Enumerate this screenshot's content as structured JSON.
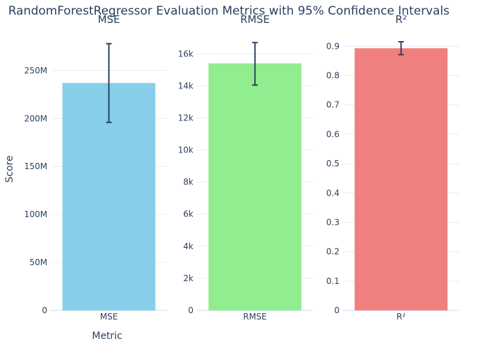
{
  "title": "RandomForestRegressor Evaluation Metrics with 95% Confidence Intervals",
  "xlabel": "Metric",
  "ylabel": "Score",
  "chart_data": [
    {
      "type": "bar",
      "title": "MSE",
      "categories": [
        "MSE"
      ],
      "values": [
        237000000
      ],
      "error_low": [
        196000000
      ],
      "error_high": [
        278000000
      ],
      "ylim": [
        0,
        280000000
      ],
      "ticks": [
        0,
        50000000,
        100000000,
        150000000,
        200000000,
        250000000
      ],
      "tick_labels": [
        "0",
        "50M",
        "100M",
        "150M",
        "200M",
        "250M"
      ],
      "color": "#87CEEB"
    },
    {
      "type": "bar",
      "title": "RMSE",
      "categories": [
        "RMSE"
      ],
      "values": [
        15400
      ],
      "error_low": [
        14050
      ],
      "error_high": [
        16700
      ],
      "ylim": [
        0,
        16750
      ],
      "ticks": [
        0,
        2000,
        4000,
        6000,
        8000,
        10000,
        12000,
        14000,
        16000
      ],
      "tick_labels": [
        "0",
        "2k",
        "4k",
        "6k",
        "8k",
        "10k",
        "12k",
        "14k",
        "16k"
      ],
      "color": "#90EE90"
    },
    {
      "type": "bar",
      "title": "R²",
      "categories": [
        "R²"
      ],
      "values": [
        0.893
      ],
      "error_low": [
        0.871
      ],
      "error_high": [
        0.915
      ],
      "ylim": [
        0,
        0.915
      ],
      "ticks": [
        0,
        0.1,
        0.2,
        0.3,
        0.4,
        0.5,
        0.6,
        0.7,
        0.8,
        0.9
      ],
      "tick_labels": [
        "0",
        "0.1",
        "0.2",
        "0.3",
        "0.4",
        "0.5",
        "0.6",
        "0.7",
        "0.8",
        "0.9"
      ],
      "color": "#F08080"
    }
  ]
}
